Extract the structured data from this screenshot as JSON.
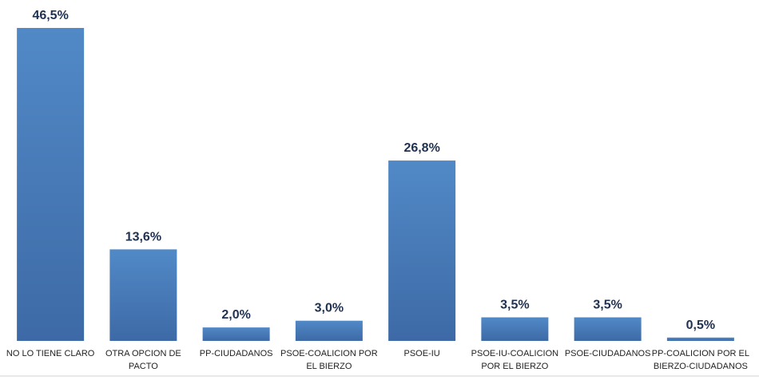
{
  "chart_data": {
    "type": "bar",
    "categories": [
      "NO LO TIENE CLARO",
      "OTRA OPCION DE PACTO",
      "PP-CIUDADANOS",
      "PSOE-COALICION POR EL BIERZO",
      "PSOE-IU",
      "PSOE-IU-COALICION POR EL BIERZO",
      "PSOE-CIUDADANOS",
      "PP-COALICION POR EL BIERZO-CIUDADANOS"
    ],
    "values": [
      46.5,
      13.6,
      2.0,
      3.0,
      26.8,
      3.5,
      3.5,
      0.5
    ],
    "value_labels": [
      "46,5%",
      "13,6%",
      "2,0%",
      "3,0%",
      "26,8%",
      "3,5%",
      "3,5%",
      "0,5%"
    ],
    "color": "#4a7dbb"
  }
}
